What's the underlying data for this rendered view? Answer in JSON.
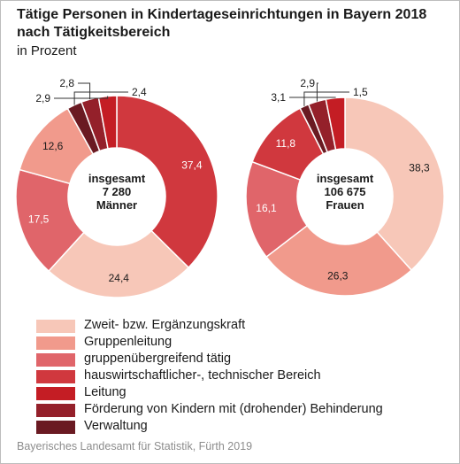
{
  "header": {
    "title_line1": "Tätige Personen in Kindertageseinrichtungen in Bayern 2018",
    "title_line2": "nach Tätigkeitsbereich",
    "subtitle": "in Prozent"
  },
  "source": "Bayerisches Landesamt für Statistik, Fürth 2019",
  "colors": [
    "#f7c7b8",
    "#f19a8c",
    "#e0656a",
    "#d0383e",
    "#c41d24",
    "#94202a",
    "#6a1a22"
  ],
  "chart_data": [
    {
      "type": "pie",
      "style": "donut",
      "center_label": [
        "insgesamt",
        "7 280",
        "Männer"
      ],
      "categories": [
        "Zweit- bzw. Ergänzungskraft",
        "Gruppenleitung",
        "gruppenübergreifend tätig",
        "hauswirtschaftlicher-, technischer Bereich",
        "Leitung",
        "Förderung von Kindern mit (drohender) Behinderung",
        "Verwaltung"
      ],
      "values": [
        24.4,
        12.6,
        17.5,
        37.4,
        2.9,
        2.8,
        2.4
      ],
      "labels": [
        "24,4",
        "12,6",
        "17,5",
        "37,4",
        "2,9",
        "2,8",
        "2,4"
      ]
    },
    {
      "type": "pie",
      "style": "donut",
      "center_label": [
        "insgesamt",
        "106 675",
        "Frauen"
      ],
      "categories": [
        "Zweit- bzw. Ergänzungskraft",
        "Gruppenleitung",
        "gruppenübergreifend tätig",
        "hauswirtschaftlicher-, technischer Bereich",
        "Leitung",
        "Förderung von Kindern mit (drohender) Behinderung",
        "Verwaltung"
      ],
      "values": [
        38.3,
        26.3,
        16.1,
        11.8,
        3.1,
        2.9,
        1.5
      ],
      "labels": [
        "38,3",
        "26,3",
        "16,1",
        "11,8",
        "3,1",
        "2,9",
        "1,5"
      ]
    }
  ],
  "legend": [
    "Zweit- bzw. Ergänzungskraft",
    "Gruppenleitung",
    "gruppenübergreifend tätig",
    "hauswirtschaftlicher-, technischer Bereich",
    "Leitung",
    "Förderung von Kindern mit (drohender) Behinderung",
    "Verwaltung"
  ]
}
